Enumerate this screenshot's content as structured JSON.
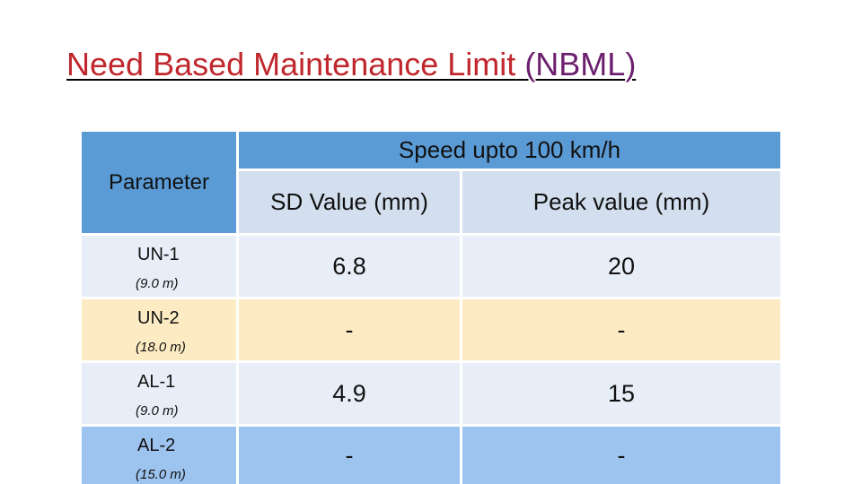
{
  "title": {
    "main": "Need Based Maintenance Limit",
    "abbr": "(NBML)"
  },
  "table": {
    "parameter_header": "Parameter",
    "speed_header": "Speed upto 100 km/h",
    "columns": [
      "SD Value (mm)",
      "Peak value (mm)"
    ],
    "rows": [
      {
        "name": "UN-1",
        "length": "(9.0 m)",
        "sd": "6.8",
        "peak": "20"
      },
      {
        "name": "UN-2",
        "length": "(18.0 m)",
        "sd": "-",
        "peak": "-"
      },
      {
        "name": "AL-1",
        "length": "(9.0 m)",
        "sd": "4.9",
        "peak": "15"
      },
      {
        "name": "AL-2",
        "length": "(15.0 m)",
        "sd": "-",
        "peak": "-"
      }
    ]
  }
}
